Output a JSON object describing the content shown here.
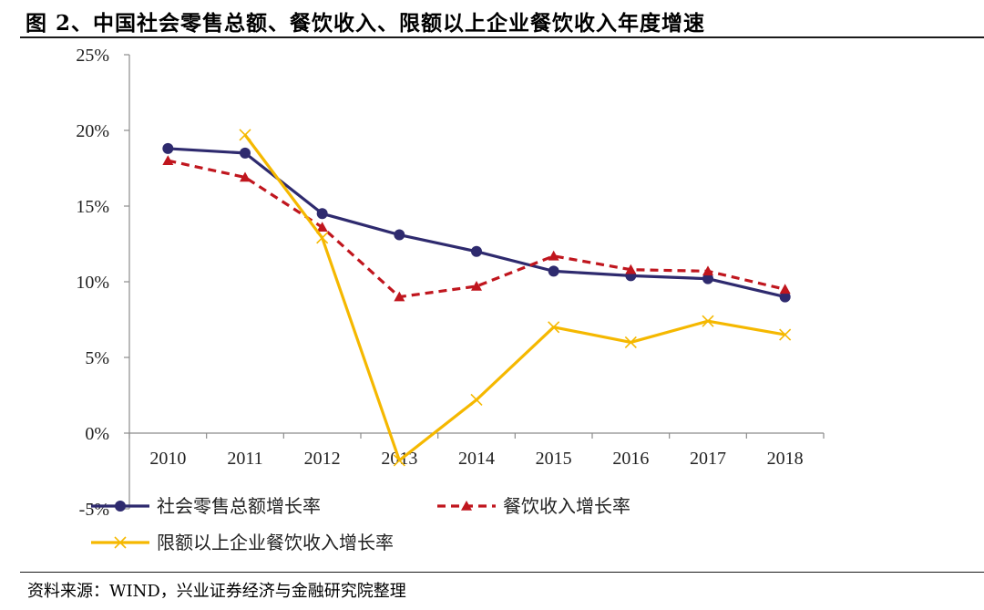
{
  "title": "图 2、中国社会零售总额、餐饮收入、限额以上企业餐饮收入年度增速",
  "source": "资料来源：WIND，兴业证券经济与金融研究院整理",
  "chart_data": {
    "type": "line",
    "categories": [
      "2010",
      "2011",
      "2012",
      "2013",
      "2014",
      "2015",
      "2016",
      "2017",
      "2018"
    ],
    "y_ticks": [
      "-5%",
      "0%",
      "5%",
      "10%",
      "15%",
      "20%",
      "25%"
    ],
    "ylim": [
      -5,
      25
    ],
    "grid": false,
    "legend_position": "bottom",
    "series": [
      {
        "name": "社会零售总额增长率",
        "color": "#2e2a6e",
        "style": "solid",
        "marker": "circle",
        "values": [
          18.8,
          18.5,
          14.5,
          13.1,
          12.0,
          10.7,
          10.4,
          10.2,
          9.0
        ]
      },
      {
        "name": "餐饮收入增长率",
        "color": "#c0161e",
        "style": "dashed",
        "marker": "triangle",
        "values": [
          18.0,
          16.9,
          13.6,
          9.0,
          9.7,
          11.7,
          10.8,
          10.7,
          9.5
        ]
      },
      {
        "name": "限额以上企业餐饮收入增长率",
        "color": "#f5b800",
        "style": "solid",
        "marker": "x",
        "values": [
          null,
          19.7,
          12.9,
          -1.8,
          2.2,
          7.0,
          6.0,
          7.4,
          6.5
        ]
      }
    ]
  }
}
